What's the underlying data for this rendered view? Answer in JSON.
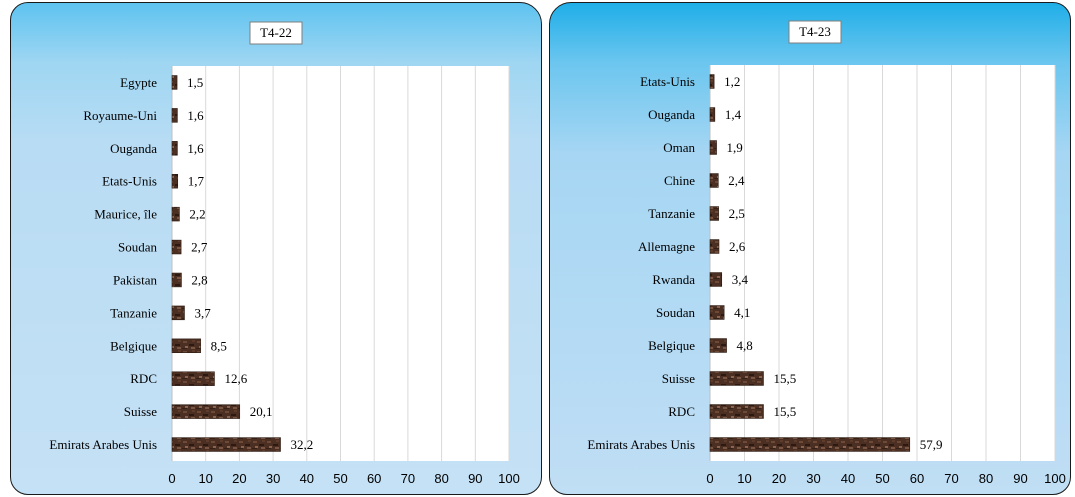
{
  "chart_data": [
    {
      "type": "bar",
      "orientation": "horizontal",
      "title": "T4-22",
      "categories": [
        "Egypte",
        "Royaume-Uni",
        "Ouganda",
        "Etats-Unis",
        "Maurice, île",
        "Soudan",
        "Pakistan",
        "Tanzanie",
        "Belgique",
        "RDC",
        "Suisse",
        "Emirats Arabes Unis"
      ],
      "values": [
        1.5,
        1.6,
        1.6,
        1.7,
        2.2,
        2.7,
        2.8,
        3.7,
        8.5,
        12.6,
        20.1,
        32.2
      ],
      "value_labels": [
        "1,5",
        "1,6",
        "1,6",
        "1,7",
        "2,2",
        "2,7",
        "2,8",
        "3,7",
        "8,5",
        "12,6",
        "20,1",
        "32,2"
      ],
      "xlim": [
        0,
        100
      ],
      "ticks": [
        "0",
        "10",
        "20",
        "30",
        "40",
        "50",
        "60",
        "70",
        "80",
        "90",
        "100"
      ],
      "grid": true,
      "bar_color": "#4a2e20"
    },
    {
      "type": "bar",
      "orientation": "horizontal",
      "title": "T4-23",
      "categories": [
        "Etats-Unis",
        "Ouganda",
        "Oman",
        "Chine",
        "Tanzanie",
        "Allemagne",
        "Rwanda",
        "Soudan",
        "Belgique",
        "Suisse",
        "RDC",
        "Emirats Arabes Unis"
      ],
      "values": [
        1.2,
        1.4,
        1.9,
        2.4,
        2.5,
        2.6,
        3.4,
        4.1,
        4.8,
        15.5,
        15.5,
        57.9
      ],
      "value_labels": [
        "1,2",
        "1,4",
        "1,9",
        "2,4",
        "2,5",
        "2,6",
        "3,4",
        "4,1",
        "4,8",
        "15,5",
        "15,5",
        "57,9"
      ],
      "xlim": [
        0,
        100
      ],
      "ticks": [
        "0",
        "10",
        "20",
        "30",
        "40",
        "50",
        "60",
        "70",
        "80",
        "90",
        "100"
      ],
      "grid": true,
      "bar_color": "#4a2e20"
    }
  ]
}
